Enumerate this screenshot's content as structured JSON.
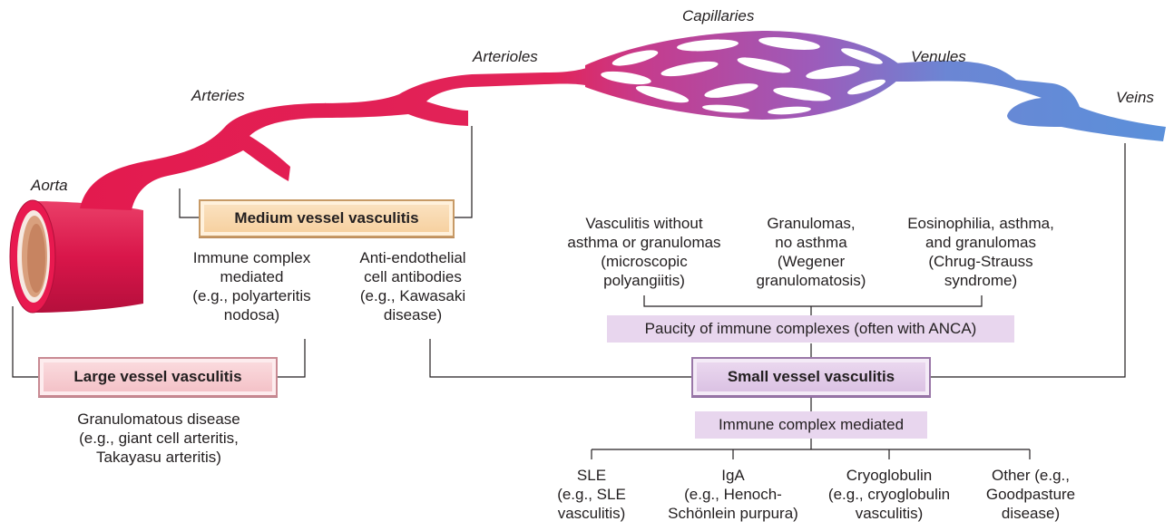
{
  "vessel_labels": {
    "aorta": "Aorta",
    "arteries": "Arteries",
    "arterioles": "Arterioles",
    "capillaries": "Capillaries",
    "venules": "Venules",
    "veins": "Veins"
  },
  "categories": {
    "large": "Large vessel vasculitis",
    "medium": "Medium vessel vasculitis",
    "small": "Small vessel vasculitis"
  },
  "large_vessel": {
    "description": "Granulomatous disease\n(e.g., giant cell arteritis,\nTakayasu arteritis)"
  },
  "medium_vessel": {
    "immune_complex": "Immune complex\nmediated\n(e.g., polyarteritis\nnodosa)",
    "anti_endothelial": "Anti-endothelial\ncell antibodies\n(e.g., Kawasaki\ndisease)"
  },
  "small_vessel": {
    "paucity_header": "Paucity of immune complexes (often with ANCA)",
    "immune_header": "Immune complex mediated",
    "paucity_items": [
      "Vasculitis without\nasthma or granulomas\n(microscopic\npolyangiitis)",
      "Granulomas,\nno asthma\n(Wegener\ngranulomatosis)",
      "Eosinophilia, asthma,\nand granulomas\n(Chrug-Strauss\nsyndrome)"
    ],
    "immune_items": [
      "SLE\n(e.g., SLE\nvasculitis)",
      "IgA\n(e.g., Henoch-\nSchönlein purpura)",
      "Cryoglobulin\n(e.g., cryoglobulin\nvasculitis)",
      "Other (e.g.,\nGoodpasture\ndisease)"
    ]
  },
  "colors": {
    "artery": "#e8194f",
    "capillary": "#a458b8",
    "vein": "#5b8fd6",
    "medium_box": "#f6cf9c",
    "large_box": "#f3bfc5",
    "small_box": "#d9bfe2"
  }
}
